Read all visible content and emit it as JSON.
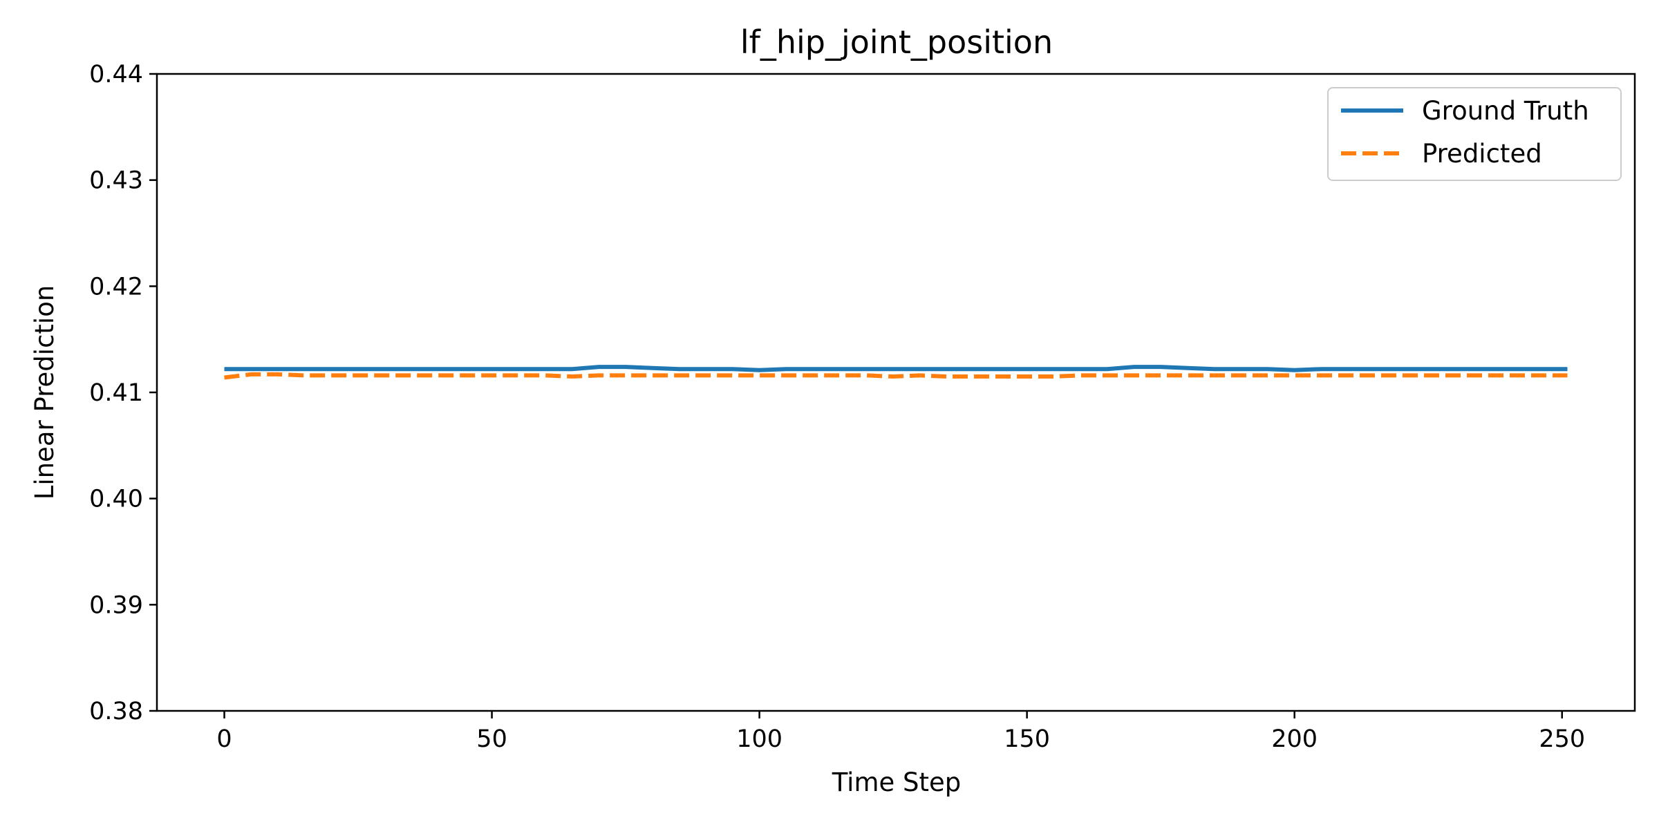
{
  "chart_data": {
    "type": "line",
    "title": "lf_hip_joint_position",
    "xlabel": "Time Step",
    "ylabel": "Linear Prediction",
    "xlim": [
      -12.6,
      263.6
    ],
    "ylim": [
      0.38,
      0.44
    ],
    "xticks": [
      0,
      50,
      100,
      150,
      200,
      250
    ],
    "yticks": [
      0.38,
      0.39,
      0.4,
      0.41,
      0.42,
      0.43,
      0.44
    ],
    "xtick_labels": [
      "0",
      "50",
      "100",
      "150",
      "200",
      "250"
    ],
    "ytick_labels": [
      "0.38",
      "0.39",
      "0.40",
      "0.41",
      "0.42",
      "0.43",
      "0.44"
    ],
    "grid": false,
    "legend": "top-right",
    "x": [
      0,
      5,
      10,
      15,
      20,
      25,
      30,
      35,
      40,
      45,
      50,
      55,
      60,
      65,
      70,
      75,
      80,
      85,
      90,
      95,
      100,
      105,
      110,
      115,
      120,
      125,
      130,
      135,
      140,
      145,
      150,
      155,
      160,
      165,
      170,
      175,
      180,
      185,
      190,
      195,
      200,
      205,
      210,
      215,
      220,
      225,
      230,
      235,
      240,
      245,
      251
    ],
    "series": [
      {
        "name": "Ground Truth",
        "color": "#1f77b4",
        "style": "solid",
        "values": [
          0.4122,
          0.4122,
          0.4122,
          0.4122,
          0.4122,
          0.4122,
          0.4122,
          0.4122,
          0.4122,
          0.4122,
          0.4122,
          0.4122,
          0.4122,
          0.4122,
          0.4124,
          0.4124,
          0.4123,
          0.4122,
          0.4122,
          0.4122,
          0.4121,
          0.4122,
          0.4122,
          0.4122,
          0.4122,
          0.4122,
          0.4122,
          0.4122,
          0.4122,
          0.4122,
          0.4122,
          0.4122,
          0.4122,
          0.4122,
          0.4124,
          0.4124,
          0.4123,
          0.4122,
          0.4122,
          0.4122,
          0.4121,
          0.4122,
          0.4122,
          0.4122,
          0.4122,
          0.4122,
          0.4122,
          0.4122,
          0.4122,
          0.4122,
          0.4122
        ]
      },
      {
        "name": "Predicted",
        "color": "#ff7f0e",
        "style": "dashed",
        "values": [
          0.4114,
          0.4117,
          0.4117,
          0.4116,
          0.4116,
          0.4116,
          0.4116,
          0.4116,
          0.4116,
          0.4116,
          0.4116,
          0.4116,
          0.4116,
          0.4115,
          0.4116,
          0.4116,
          0.4116,
          0.4116,
          0.4116,
          0.4116,
          0.4116,
          0.4116,
          0.4116,
          0.4116,
          0.4116,
          0.4115,
          0.4116,
          0.4115,
          0.4115,
          0.4115,
          0.4115,
          0.4115,
          0.4116,
          0.4116,
          0.4116,
          0.4116,
          0.4116,
          0.4116,
          0.4116,
          0.4116,
          0.4116,
          0.4116,
          0.4116,
          0.4116,
          0.4116,
          0.4116,
          0.4116,
          0.4116,
          0.4116,
          0.4116,
          0.4116
        ]
      }
    ]
  }
}
